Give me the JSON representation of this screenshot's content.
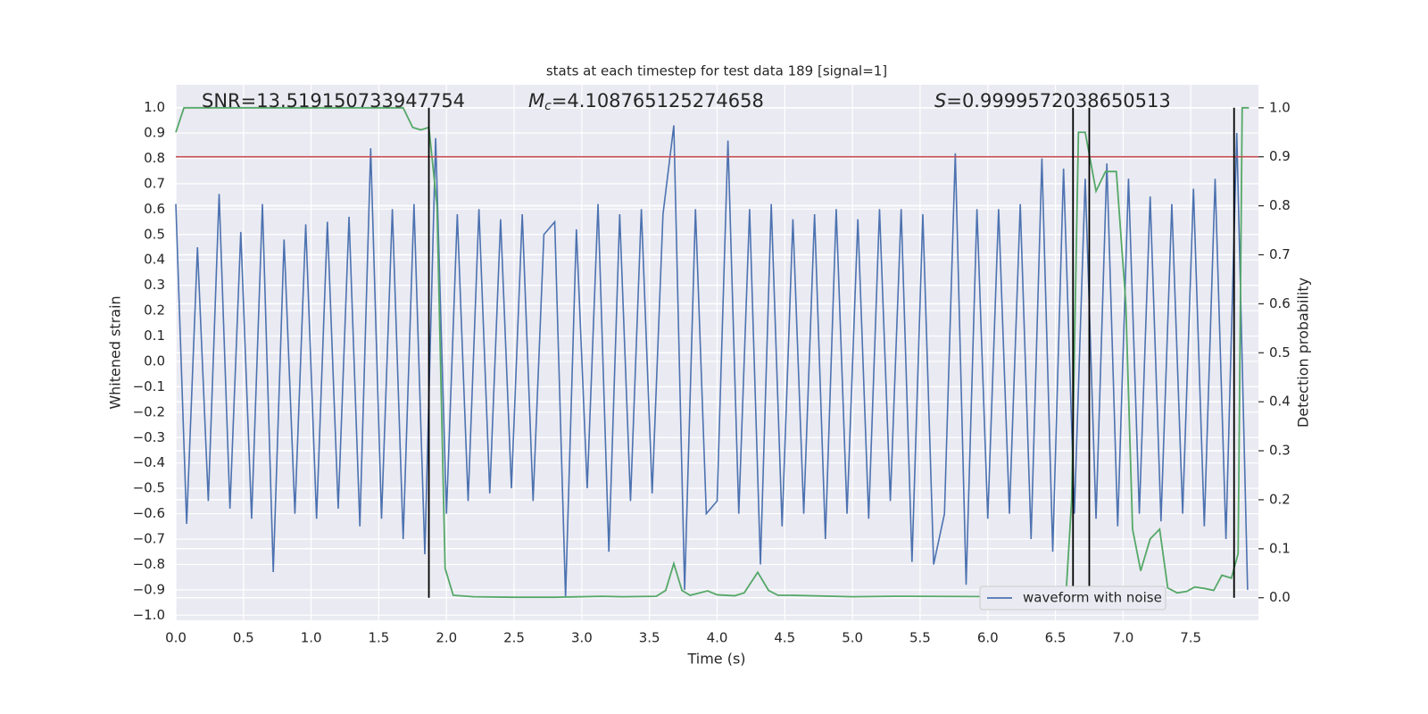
{
  "chart_data": {
    "type": "line",
    "title": "stats at each timestep for test data 189 [signal=1]",
    "xlabel": "Time (s)",
    "ylabel": "Whitened strain",
    "y2label": "Detection probability",
    "annotations": [
      {
        "label": "SNR=13.519150733947754"
      },
      {
        "italic": "M",
        "sub": "c",
        "label": "=4.108765125274658"
      },
      {
        "italic": "S",
        "label": "=0.9999572038650513"
      }
    ],
    "xlim": [
      0,
      8
    ],
    "ylim": [
      -1.02,
      1.09
    ],
    "y2lim": [
      -0.046,
      1.047
    ],
    "xticks": [
      {
        "value": 0,
        "label": "0.0"
      },
      0.5,
      {
        "value": 1,
        "label": "1.0"
      },
      1.5,
      {
        "value": 2,
        "label": "2.0"
      },
      2.5,
      {
        "value": 3,
        "label": "3.0"
      },
      3.5,
      {
        "value": 4,
        "label": "4.0"
      },
      4.5,
      {
        "value": 5,
        "label": "5.0"
      },
      5.5,
      {
        "value": 6,
        "label": "6.0"
      },
      6.5,
      {
        "value": 7,
        "label": "7.0"
      },
      7.5
    ],
    "yticks": [
      {
        "value": -1,
        "label": "−1.0"
      },
      {
        "value": -0.9,
        "label": "−0.9"
      },
      {
        "value": -0.8,
        "label": "−0.8"
      },
      {
        "value": -0.7,
        "label": "−0.7"
      },
      {
        "value": -0.6,
        "label": "−0.6"
      },
      {
        "value": -0.5,
        "label": "−0.5"
      },
      {
        "value": -0.4,
        "label": "−0.4"
      },
      {
        "value": -0.3,
        "label": "−0.3"
      },
      {
        "value": -0.2,
        "label": "−0.2"
      },
      {
        "value": -0.1,
        "label": "−0.1"
      },
      {
        "value": 0,
        "label": "0.0"
      },
      0.1,
      0.2,
      0.3,
      0.4,
      0.5,
      0.6,
      0.7,
      0.8,
      0.9,
      {
        "value": 1,
        "label": "1.0"
      }
    ],
    "y2ticks": [
      {
        "value": 0,
        "label": "0.0"
      },
      0.1,
      0.2,
      0.3,
      0.4,
      0.5,
      0.6,
      0.7,
      0.8,
      0.9,
      {
        "value": 1,
        "label": "1.0"
      }
    ],
    "grid": true,
    "legend_loc": "lower right",
    "series": [
      {
        "name": "waveform with noise",
        "color": "#4c72b0",
        "x": [
          0,
          0.08,
          0.16,
          0.24,
          0.32,
          0.4,
          0.48,
          0.56,
          0.64,
          0.72,
          0.8,
          0.88,
          0.96,
          1.04,
          1.12,
          1.2,
          1.28,
          1.36,
          1.44,
          1.52,
          1.6,
          1.68,
          1.76,
          1.84,
          1.92,
          2.0,
          2.08,
          2.16,
          2.24,
          2.32,
          2.4,
          2.48,
          2.56,
          2.64,
          2.72,
          2.8,
          2.88,
          2.96,
          3.04,
          3.12,
          3.2,
          3.28,
          3.36,
          3.44,
          3.52,
          3.6,
          3.68,
          3.76,
          3.84,
          3.92,
          4.0,
          4.08,
          4.16,
          4.24,
          4.32,
          4.4,
          4.48,
          4.56,
          4.64,
          4.72,
          4.8,
          4.88,
          4.96,
          5.04,
          5.12,
          5.2,
          5.28,
          5.36,
          5.44,
          5.52,
          5.6,
          5.68,
          5.76,
          5.84,
          5.92,
          6.0,
          6.08,
          6.16,
          6.24,
          6.32,
          6.4,
          6.48,
          6.56,
          6.64,
          6.72,
          6.8,
          6.88,
          6.96,
          7.04,
          7.12,
          7.2,
          7.28,
          7.36,
          7.44,
          7.52,
          7.6,
          7.68,
          7.76,
          7.84,
          7.92
        ],
        "values": [
          0.62,
          -0.64,
          0.45,
          -0.55,
          0.66,
          -0.58,
          0.51,
          -0.62,
          0.62,
          -0.83,
          0.48,
          -0.6,
          0.54,
          -0.62,
          0.55,
          -0.58,
          0.57,
          -0.65,
          0.84,
          -0.62,
          0.6,
          -0.7,
          0.62,
          -0.76,
          0.88,
          -0.6,
          0.58,
          -0.55,
          0.6,
          -0.52,
          0.56,
          -0.5,
          0.58,
          -0.55,
          0.5,
          0.55,
          -0.93,
          0.52,
          -0.5,
          0.62,
          -0.75,
          0.58,
          -0.55,
          0.6,
          -0.52,
          0.58,
          0.93,
          -0.9,
          0.6,
          -0.6,
          -0.55,
          0.87,
          -0.6,
          0.6,
          -0.8,
          0.62,
          -0.65,
          0.56,
          -0.6,
          0.58,
          -0.7,
          0.6,
          -0.6,
          0.56,
          -0.62,
          0.6,
          -0.55,
          0.6,
          -0.79,
          0.58,
          -0.8,
          -0.6,
          0.82,
          -0.88,
          0.6,
          -0.62,
          0.6,
          -0.6,
          0.62,
          -0.7,
          0.8,
          -0.75,
          0.76,
          -0.6,
          0.72,
          -0.62,
          0.78,
          -0.65,
          0.72,
          -0.6,
          0.65,
          -0.63,
          0.62,
          -0.6,
          0.68,
          -0.65,
          0.72,
          -0.7,
          0.9,
          -0.9
        ]
      },
      {
        "color": "#55a868",
        "axis": "y2",
        "x": [
          0,
          0.06,
          0.12,
          0.2,
          0.3,
          0.5,
          0.8,
          1.1,
          1.4,
          1.68,
          1.75,
          1.81,
          1.87,
          1.93,
          1.99,
          2.05,
          2.2,
          2.5,
          2.8,
          3.15,
          3.3,
          3.55,
          3.62,
          3.68,
          3.74,
          3.8,
          3.93,
          4.0,
          4.13,
          4.2,
          4.3,
          4.38,
          4.45,
          4.55,
          5.0,
          5.3,
          6.3,
          6.38,
          6.45,
          6.52,
          6.58,
          6.62,
          6.67,
          6.72,
          6.8,
          6.87,
          6.95,
          7.02,
          7.07,
          7.13,
          7.2,
          7.27,
          7.33,
          7.4,
          7.47,
          7.53,
          7.6,
          7.67,
          7.73,
          7.8,
          7.85,
          7.88,
          7.93
        ],
        "values": [
          0.95,
          1.0,
          1.0,
          1.0,
          1.0,
          1.0,
          1.0,
          1.0,
          1.0,
          1.0,
          0.96,
          0.955,
          0.96,
          0.8,
          0.06,
          0.005,
          0.002,
          0.001,
          0.001,
          0.003,
          0.002,
          0.003,
          0.015,
          0.07,
          0.015,
          0.005,
          0.014,
          0.006,
          0.004,
          0.01,
          0.052,
          0.015,
          0.005,
          0.005,
          0.002,
          0.003,
          0.002,
          0.005,
          0.018,
          0.02,
          0.016,
          0.2,
          0.95,
          0.95,
          0.83,
          0.87,
          0.87,
          0.6,
          0.14,
          0.055,
          0.12,
          0.14,
          0.02,
          0.01,
          0.013,
          0.022,
          0.019,
          0.015,
          0.046,
          0.04,
          0.09,
          1.0,
          1.0
        ]
      }
    ],
    "hline": {
      "y": 0.9,
      "axis": "y2",
      "color": "#c44e52"
    },
    "vlines": {
      "x": [
        1.87,
        6.63,
        6.75,
        7.82
      ],
      "ymin": 0,
      "ymax": 1,
      "axis": "y2",
      "color": "#000000"
    }
  }
}
